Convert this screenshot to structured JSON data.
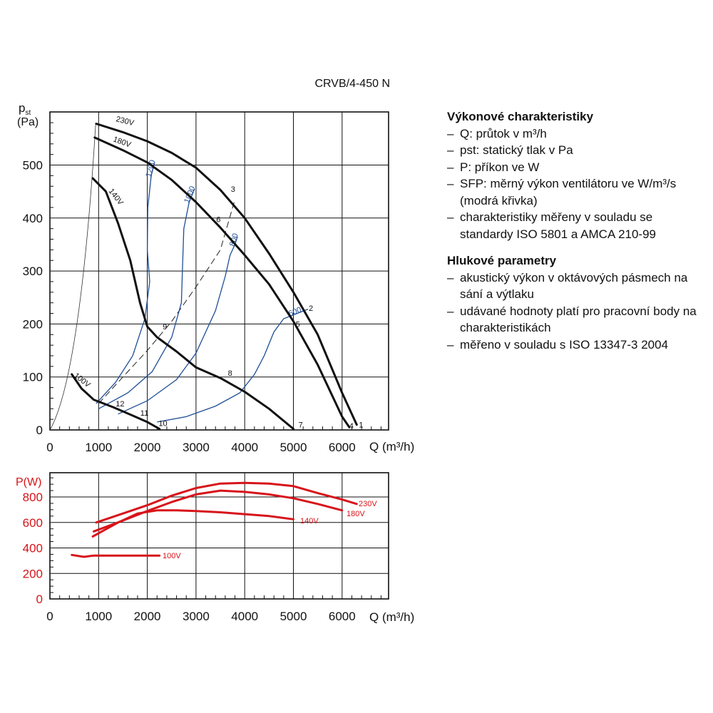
{
  "title": "CRVB/4-450 N",
  "colors": {
    "pressure_curve": "#111111",
    "sfp_curve": "#1f4e96",
    "power_curve": "#d7141a",
    "axis": "#111111",
    "grid": "#111111"
  },
  "pressure_axis": {
    "y_label_main": "p",
    "y_label_sub": "st",
    "y_unit": "(Pa)",
    "x_label": "Q (m³/h)",
    "x_ticks": [
      "0",
      "1000",
      "2000",
      "3000",
      "4000",
      "5000",
      "6000"
    ],
    "y_ticks": [
      "0",
      "100",
      "200",
      "300",
      "400",
      "500"
    ]
  },
  "power_axis": {
    "y_label": "P(W)",
    "x_label": "Q (m³/h)",
    "x_ticks": [
      "0",
      "1000",
      "2000",
      "3000",
      "4000",
      "5000",
      "6000"
    ],
    "y_ticks": [
      "0",
      "200",
      "400",
      "600",
      "800"
    ]
  },
  "chart_data": [
    {
      "type": "line",
      "xlabel": "Q (m³/h)",
      "ylabel": "pst (Pa)",
      "xlim": [
        0,
        7000
      ],
      "ylim": [
        0,
        580
      ],
      "grid": true,
      "series": [
        {
          "name": "230V",
          "x": [
            950,
            1500,
            2000,
            2500,
            3000,
            3500,
            4000,
            4500,
            5000,
            5500,
            6000,
            6300
          ],
          "y": [
            578,
            562,
            545,
            523,
            495,
            453,
            400,
            333,
            260,
            180,
            70,
            10
          ]
        },
        {
          "name": "180V",
          "x": [
            920,
            1500,
            2000,
            2500,
            3000,
            3500,
            4000,
            4500,
            5000,
            5500,
            6000,
            6150
          ],
          "y": [
            552,
            528,
            505,
            472,
            430,
            382,
            330,
            275,
            205,
            123,
            25,
            5
          ]
        },
        {
          "name": "140V",
          "x": [
            880,
            1150,
            1400,
            1650,
            1850,
            2000,
            2200,
            2600,
            3000,
            3500,
            4000,
            4500,
            5000
          ],
          "y": [
            475,
            450,
            390,
            320,
            240,
            195,
            175,
            148,
            118,
            98,
            72,
            40,
            2
          ]
        },
        {
          "name": "100V",
          "x": [
            450,
            650,
            900,
            1300,
            1700,
            2000,
            2250
          ],
          "y": [
            105,
            78,
            57,
            43,
            27,
            15,
            2
          ]
        }
      ],
      "sfp_curves": [
        {
          "name": "1200",
          "x": [
            950,
            1350,
            1700,
            1950,
            2050,
            2000,
            2010,
            2080,
            2150
          ],
          "y": [
            50,
            90,
            140,
            210,
            280,
            340,
            420,
            480,
            505
          ]
        },
        {
          "name": "1000",
          "x": [
            1000,
            1600,
            2100,
            2500,
            2700,
            2720,
            2750,
            2860,
            2970
          ],
          "y": [
            40,
            70,
            110,
            175,
            240,
            300,
            380,
            430,
            455
          ]
        },
        {
          "name": "800",
          "x": [
            1400,
            2000,
            2600,
            3000,
            3400,
            3600,
            3700,
            3800,
            3850
          ],
          "y": [
            30,
            55,
            95,
            145,
            225,
            290,
            330,
            350,
            365
          ]
        },
        {
          "name": "600",
          "x": [
            2200,
            2800,
            3400,
            3900,
            4200,
            4400,
            4600,
            4800,
            5300
          ],
          "y": [
            15,
            25,
            45,
            70,
            105,
            140,
            185,
            210,
            228
          ]
        }
      ],
      "system_line": {
        "x": [
          1000,
          1500,
          2000,
          2500,
          3000,
          3500,
          3800
        ],
        "y": [
          50,
          100,
          150,
          205,
          270,
          340,
          435
        ]
      },
      "points": [
        {
          "label": "1",
          "x": 6390,
          "y": 10
        },
        {
          "label": "2",
          "x": 5360,
          "y": 230
        },
        {
          "label": "3",
          "x": 3760,
          "y": 455
        },
        {
          "label": "4",
          "x": 6190,
          "y": 8
        },
        {
          "label": "5",
          "x": 5090,
          "y": 200
        },
        {
          "label": "6",
          "x": 3460,
          "y": 398
        },
        {
          "label": "7",
          "x": 5150,
          "y": 10
        },
        {
          "label": "8",
          "x": 3700,
          "y": 108
        },
        {
          "label": "9",
          "x": 2360,
          "y": 195
        },
        {
          "label": "10",
          "x": 2320,
          "y": 13
        },
        {
          "label": "11",
          "x": 1940,
          "y": 32
        },
        {
          "label": "12",
          "x": 1440,
          "y": 50
        }
      ]
    },
    {
      "type": "line",
      "xlabel": "Q (m³/h)",
      "ylabel": "P(W)",
      "xlim": [
        0,
        7000
      ],
      "ylim": [
        0,
        1000
      ],
      "grid": true,
      "series": [
        {
          "name": "230V",
          "x": [
            950,
            1500,
            2000,
            2500,
            3000,
            3500,
            4000,
            4500,
            5000,
            5500,
            6000,
            6300
          ],
          "y": [
            600,
            670,
            735,
            810,
            870,
            905,
            910,
            905,
            885,
            830,
            780,
            745
          ]
        },
        {
          "name": "180V",
          "x": [
            900,
            1500,
            2000,
            2500,
            3000,
            3500,
            4000,
            4500,
            5000,
            5500,
            6000
          ],
          "y": [
            530,
            615,
            690,
            760,
            820,
            850,
            840,
            820,
            790,
            745,
            695
          ]
        },
        {
          "name": "140V",
          "x": [
            880,
            1400,
            1800,
            2200,
            2600,
            3000,
            3500,
            4000,
            4500,
            5000
          ],
          "y": [
            490,
            600,
            670,
            695,
            695,
            690,
            680,
            665,
            650,
            625
          ]
        },
        {
          "name": "100V",
          "x": [
            450,
            700,
            900,
            1300,
            1700,
            2000,
            2250
          ],
          "y": [
            345,
            330,
            340,
            340,
            340,
            340,
            340
          ]
        }
      ]
    }
  ],
  "legend_block": {
    "performance_heading": "Výkonové charakteristiky",
    "performance_items": [
      "Q: průtok v m³/h",
      "pst: statický tlak v Pa",
      "P: příkon ve W",
      "SFP: měrný výkon ventilátoru ve W/m³/s (modrá křivka)",
      "charakteristiky měřeny v souladu se standardy ISO 5801 a AMCA 210-99"
    ],
    "noise_heading": "Hlukové parametry",
    "noise_items": [
      "akustický výkon v oktávových pásmech na sání a výtlaku",
      "udávané hodnoty platí pro pracovní body na charakteristikách",
      "měřeno v souladu s ISO 13347-3 2004"
    ]
  }
}
